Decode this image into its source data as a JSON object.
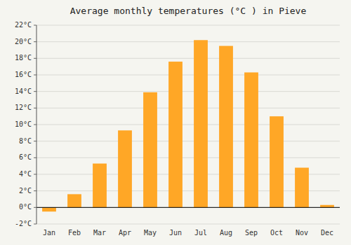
{
  "chart_data": {
    "type": "bar",
    "title": "Average monthly temperatures (°C ) in Pieve",
    "categories": [
      "Jan",
      "Feb",
      "Mar",
      "Apr",
      "May",
      "Jun",
      "Jul",
      "Aug",
      "Sep",
      "Oct",
      "Nov",
      "Dec"
    ],
    "values": [
      -0.5,
      1.6,
      5.3,
      9.3,
      13.9,
      17.6,
      20.2,
      19.5,
      16.3,
      11.0,
      4.8,
      0.3
    ],
    "color": "#FFA726",
    "ylim": [
      -2,
      22
    ],
    "yticks": [
      {
        "value": -2,
        "label": "-2°C"
      },
      {
        "value": 0,
        "label": "0°C"
      },
      {
        "value": 2,
        "label": "2°C"
      },
      {
        "value": 4,
        "label": "4°C"
      },
      {
        "value": 6,
        "label": "6°C"
      },
      {
        "value": 8,
        "label": "8°C"
      },
      {
        "value": 10,
        "label": "10°C"
      },
      {
        "value": 12,
        "label": "12°C"
      },
      {
        "value": 14,
        "label": "14°C"
      },
      {
        "value": 16,
        "label": "16°C"
      },
      {
        "value": 18,
        "label": "18°C"
      },
      {
        "value": 20,
        "label": "20°C"
      },
      {
        "value": 22,
        "label": "22°C"
      }
    ],
    "grid": true
  }
}
